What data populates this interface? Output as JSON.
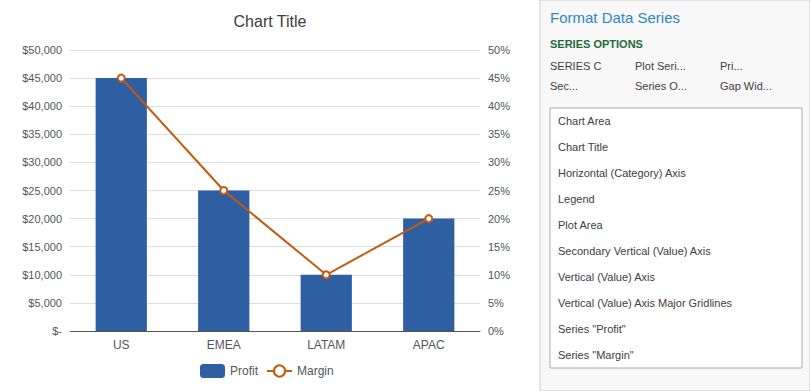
{
  "chart_data": {
    "type": "bar",
    "title": "Chart Title",
    "categories": [
      "US",
      "EMEA",
      "LATAM",
      "APAC"
    ],
    "series": [
      {
        "name": "Profit",
        "type": "bar",
        "color": "#2E5FA3",
        "values": [
          45000,
          25000,
          10000,
          20000
        ]
      },
      {
        "name": "Margin",
        "type": "line",
        "color": "#C55A11",
        "marker": "circle",
        "axis": "y2",
        "values": [
          0.45,
          0.25,
          0.1,
          0.2
        ]
      }
    ],
    "ylim": [
      0,
      50000
    ],
    "yticks": [
      {
        "value": 0,
        "label": "$-"
      },
      {
        "value": 5000,
        "label": "$5,000"
      },
      {
        "value": 10000,
        "label": "$10,000"
      },
      {
        "value": 15000,
        "label": "$15,000"
      },
      {
        "value": 20000,
        "label": "$20,000"
      },
      {
        "value": 25000,
        "label": "$25,000"
      },
      {
        "value": 30000,
        "label": "$30,000"
      },
      {
        "value": 35000,
        "label": "$35,000"
      },
      {
        "value": 40000,
        "label": "$40,000"
      },
      {
        "value": 45000,
        "label": "$45,000"
      },
      {
        "value": 50000,
        "label": "$50,000"
      }
    ],
    "y2lim": [
      0,
      0.5
    ],
    "y2ticks": [
      {
        "value": 0,
        "label": "0%"
      },
      {
        "value": 0.05,
        "label": "5%"
      },
      {
        "value": 0.1,
        "label": "10%"
      },
      {
        "value": 0.15,
        "label": "15%"
      },
      {
        "value": 0.2,
        "label": "20%"
      },
      {
        "value": 0.25,
        "label": "25%"
      },
      {
        "value": 0.3,
        "label": "30%"
      },
      {
        "value": 0.35,
        "label": "35%"
      },
      {
        "value": 0.4,
        "label": "40%"
      },
      {
        "value": 0.45,
        "label": "45%"
      },
      {
        "value": 0.5,
        "label": "50%"
      }
    ],
    "grid": true,
    "legend": "bottom",
    "annotations": [
      "Format Data Series",
      "SERIES OPTIONS",
      "SERIES C",
      "Plot Seri...",
      "Pri...",
      "Sec...",
      "Series O...",
      "Gap Wid...",
      "Chart Area",
      "Chart Title",
      "Horizontal (Category) Axis",
      "Legend",
      "Plot Area",
      "Secondary Vertical (Value) Axis",
      "Vertical (Value) Axis",
      "Vertical (Value) Axis Major Gridlines",
      "Series \"Profit\"",
      "Series \"Margin\""
    ]
  }
}
